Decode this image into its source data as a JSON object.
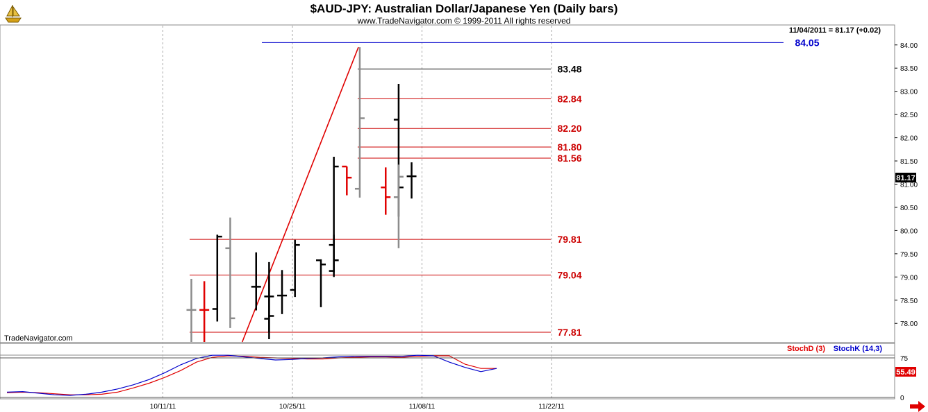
{
  "header": {
    "title": "$AUD-JPY:  Australian Dollar/Japanese Yen  (Daily bars)",
    "subtitle": "www.TradeNavigator.com © 1999-2011 All rights reserved",
    "last_quote": "11/04/2011 = 81.17 (+0.02)",
    "watermark": "TradeNavigator.com",
    "logo_icon": "sailing-ship-icon"
  },
  "colors": {
    "black_bar": "#000000",
    "gray_bar": "#8c8c8c",
    "red_bar": "#e00000",
    "level_red": "#cc0000",
    "level_black": "#000000",
    "level_blue": "#0000cc",
    "trendline": "#e00000",
    "stoch_d": "#e00000",
    "stoch_k": "#0000cc",
    "last_price_bg": "#000000",
    "stoch_value_bg": "#e00000",
    "nav_arrow": "#e00000"
  },
  "chart_data": [
    {
      "type": "ohlc",
      "ylim": [
        77.6,
        84.4
      ],
      "y_ticks": [
        "78.00",
        "78.50",
        "79.00",
        "79.50",
        "80.00",
        "80.50",
        "81.00",
        "81.50",
        "82.00",
        "82.50",
        "83.00",
        "83.50",
        "84.00"
      ],
      "x_tick_labels": [
        "10/11/11",
        "10/25/11",
        "11/08/11",
        "11/22/11"
      ],
      "last_price_label": "81.17",
      "bars": [
        {
          "date": "10/11/11",
          "open": 78.29,
          "high": 78.96,
          "low": 77.6,
          "close": 78.29,
          "color": "gray"
        },
        {
          "date": "10/12/11",
          "open": 78.29,
          "high": 78.91,
          "low": 77.6,
          "close": 78.29,
          "color": "red"
        },
        {
          "date": "10/13/11",
          "open": 78.31,
          "high": 79.91,
          "low": 78.04,
          "close": 79.87,
          "color": "black"
        },
        {
          "date": "10/14/11",
          "open": 79.62,
          "high": 80.28,
          "low": 77.9,
          "close": 78.11,
          "color": "gray"
        },
        {
          "date": "10/17/11",
          "open": 78.1,
          "high": 79.32,
          "low": 77.66,
          "close": 78.16,
          "color": "black"
        },
        {
          "date": "10/18/11",
          "open": 78.79,
          "high": 79.53,
          "low": 78.28,
          "close": 78.79,
          "color": "black"
        },
        {
          "date": "10/19/11",
          "open": 78.58,
          "high": 79.01,
          "low": 77.81,
          "close": 78.58,
          "color": "black"
        },
        {
          "date": "10/20/11",
          "open": 78.6,
          "high": 79.15,
          "low": 78.2,
          "close": 78.6,
          "color": "black"
        },
        {
          "date": "10/21/11",
          "open": 78.72,
          "high": 79.8,
          "low": 78.57,
          "close": 79.69,
          "color": "black"
        },
        {
          "date": "10/24/11",
          "open": 79.69,
          "high": 79.91,
          "low": 79.0,
          "close": 79.36,
          "color": "black"
        },
        {
          "date": "10/25/11",
          "open": 79.36,
          "high": 79.38,
          "low": 78.35,
          "close": 79.27,
          "color": "black"
        },
        {
          "date": "10/26/11",
          "open": 79.13,
          "high": 81.59,
          "low": 79.1,
          "close": 81.38,
          "color": "black"
        },
        {
          "date": "10/27/11",
          "open": 81.38,
          "high": 81.38,
          "low": 80.76,
          "close": 81.14,
          "color": "red"
        },
        {
          "date": "10/28/11",
          "open": 80.9,
          "high": 83.95,
          "low": 80.71,
          "close": 82.42,
          "color": "gray"
        },
        {
          "date": "10/31/11",
          "open": 82.39,
          "high": 83.16,
          "low": 80.3,
          "close": 80.93,
          "color": "black"
        },
        {
          "date": "11/01/11",
          "open": 80.93,
          "high": 81.36,
          "low": 80.34,
          "close": 80.72,
          "color": "red"
        },
        {
          "date": "11/02/11",
          "open": 80.72,
          "high": 81.42,
          "low": 79.62,
          "close": 81.16,
          "color": "gray"
        },
        {
          "date": "11/03/11",
          "open": 81.17,
          "high": 81.47,
          "low": 80.69,
          "close": 81.17,
          "color": "black"
        }
      ],
      "levels": [
        {
          "value": 84.05,
          "label": "84.05",
          "color": "blue"
        },
        {
          "value": 83.48,
          "label": "83.48",
          "color": "black"
        },
        {
          "value": 82.84,
          "label": "82.84",
          "color": "red"
        },
        {
          "value": 82.2,
          "label": "82.20",
          "color": "red"
        },
        {
          "value": 81.8,
          "label": "81.80",
          "color": "red"
        },
        {
          "value": 81.56,
          "label": "81.56",
          "color": "red"
        },
        {
          "value": 79.81,
          "label": "79.81",
          "color": "red"
        },
        {
          "value": 79.04,
          "label": "79.04",
          "color": "red"
        },
        {
          "value": 77.81,
          "label": "77.81",
          "color": "red"
        }
      ],
      "trendline": {
        "from": {
          "date": "10/16/11",
          "value": 77.6
        },
        "to": {
          "date": "10/28/11",
          "value": 83.95
        }
      }
    },
    {
      "type": "line",
      "ylim": [
        0,
        100
      ],
      "y_ticks": [
        "0",
        "75"
      ],
      "value_label": "55.49",
      "series": [
        {
          "name": "StochD (3)",
          "color": "red",
          "values": [
            9,
            10,
            9,
            7,
            5,
            5,
            6,
            10,
            18,
            27,
            38,
            51,
            67,
            76,
            79,
            78,
            76,
            75,
            74,
            73,
            73,
            75,
            76,
            77,
            77,
            76,
            78,
            79,
            79,
            63,
            55,
            55
          ]
        },
        {
          "name": "StochK (14,3)",
          "color": "blue",
          "values": [
            10,
            11,
            8,
            5,
            4,
            6,
            10,
            16,
            24,
            34,
            47,
            62,
            74,
            80,
            80,
            77,
            74,
            71,
            72,
            74,
            75,
            77,
            78,
            78,
            78,
            78,
            80,
            79,
            67,
            57,
            49,
            55
          ]
        }
      ]
    }
  ]
}
